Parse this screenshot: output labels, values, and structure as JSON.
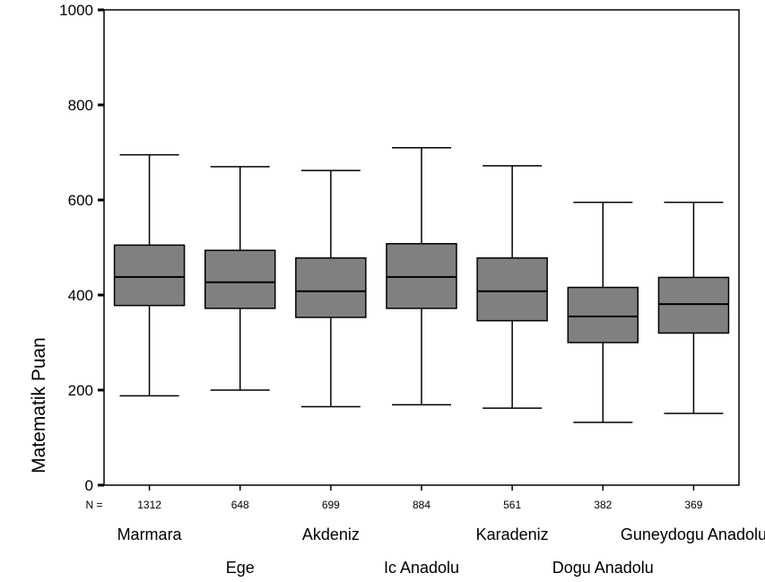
{
  "chart_data": {
    "type": "boxplot",
    "title": "",
    "xlabel": "",
    "ylabel": "Matematik Puan",
    "ylim": [
      0,
      1000
    ],
    "yticks": [
      "0",
      "200",
      "400",
      "600",
      "800",
      "1000"
    ],
    "grid": false,
    "box_color": "#808080",
    "n_prefix": "N =",
    "categories": [
      "Marmara",
      "Ege",
      "Akdeniz",
      "Ic Anadolu",
      "Karadeniz",
      "Dogu Anadolu",
      "Guneydogu Anadolu"
    ],
    "n": [
      "1312",
      "648",
      "699",
      "884",
      "561",
      "382",
      "369"
    ],
    "boxes": [
      {
        "min": 188,
        "q1": 378,
        "median": 438,
        "q3": 505,
        "max": 695
      },
      {
        "min": 200,
        "q1": 372,
        "median": 427,
        "q3": 494,
        "max": 670
      },
      {
        "min": 165,
        "q1": 353,
        "median": 408,
        "q3": 478,
        "max": 662
      },
      {
        "min": 169,
        "q1": 372,
        "median": 438,
        "q3": 508,
        "max": 710
      },
      {
        "min": 162,
        "q1": 346,
        "median": 408,
        "q3": 478,
        "max": 672
      },
      {
        "min": 132,
        "q1": 300,
        "median": 355,
        "q3": 416,
        "max": 595
      },
      {
        "min": 151,
        "q1": 320,
        "median": 381,
        "q3": 437,
        "max": 595
      }
    ]
  }
}
